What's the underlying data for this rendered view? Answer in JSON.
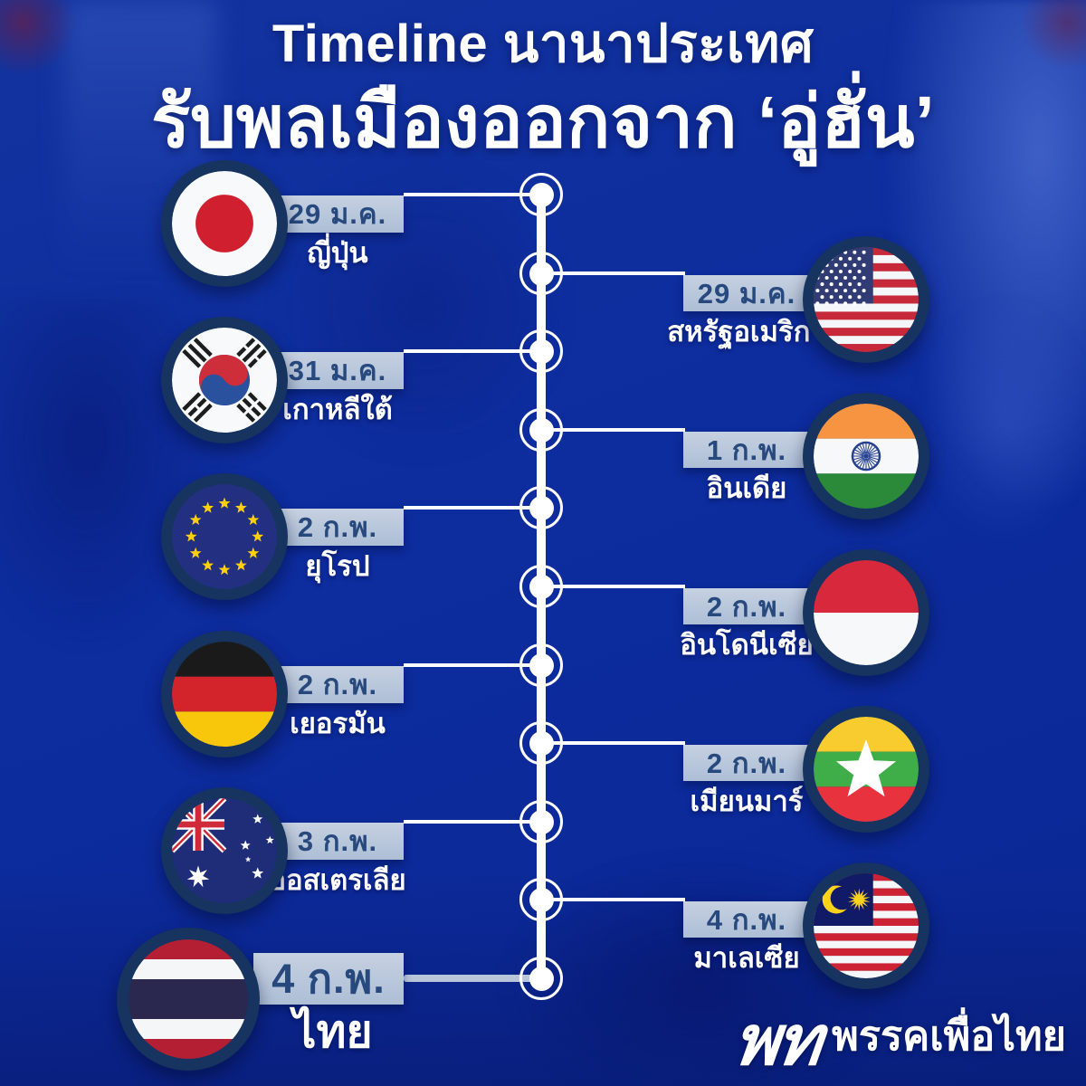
{
  "title": {
    "line1": "Timeline นานาประเทศ",
    "line2": "รับพลเมืองออกจาก ‘อู่ฮั่น’"
  },
  "timeline": {
    "entries": [
      {
        "id": "japan",
        "side": "left",
        "date": "29 ม.ค.",
        "country": "ญี่ปุ่น",
        "flag": "japan"
      },
      {
        "id": "usa",
        "side": "right",
        "date": "29 ม.ค.",
        "country": "สหรัฐอเมริกา",
        "flag": "usa"
      },
      {
        "id": "south-korea",
        "side": "left",
        "date": "31 ม.ค.",
        "country": "เกาหลีใต้",
        "flag": "south-korea"
      },
      {
        "id": "india",
        "side": "right",
        "date": "1 ก.พ.",
        "country": "อินเดีย",
        "flag": "india"
      },
      {
        "id": "europe",
        "side": "left",
        "date": "2 ก.พ.",
        "country": "ยุโรป",
        "flag": "europe"
      },
      {
        "id": "indonesia",
        "side": "right",
        "date": "2 ก.พ.",
        "country": "อินโดนีเซีย",
        "flag": "indonesia"
      },
      {
        "id": "germany",
        "side": "left",
        "date": "2 ก.พ.",
        "country": "เยอรมัน",
        "flag": "germany"
      },
      {
        "id": "myanmar",
        "side": "right",
        "date": "2 ก.พ.",
        "country": "เมียนมาร์",
        "flag": "myanmar"
      },
      {
        "id": "australia",
        "side": "left",
        "date": "3 ก.พ.",
        "country": "ออสเตรเลีย",
        "flag": "australia"
      },
      {
        "id": "malaysia",
        "side": "right",
        "date": "4 ก.พ.",
        "country": "มาเลเซีย",
        "flag": "malaysia"
      },
      {
        "id": "thailand",
        "side": "left",
        "date": "4 ก.พ.",
        "country": "ไทย",
        "flag": "thailand",
        "emphasis": true
      }
    ]
  },
  "footer": {
    "logo": "พท",
    "party_name": "พรรคเพื่อไทย"
  },
  "colors": {
    "background": "#0d2da0",
    "ribbon": "#b9c6d9",
    "date_text": "#27497e",
    "flag_ring": "#16345f",
    "timeline": "#ffffff"
  }
}
